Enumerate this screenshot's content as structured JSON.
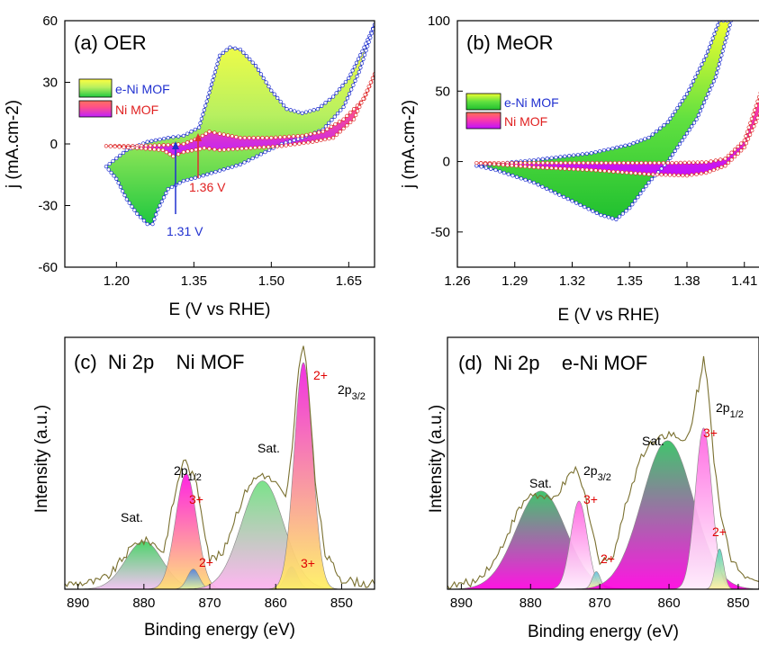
{
  "chart_data": [
    {
      "id": "a",
      "type": "area",
      "panel_title": "(a)  OER",
      "xlabel": "E (V vs RHE)",
      "ylabel": "j (mA.cm-2)",
      "xlim": [
        1.1,
        1.7
      ],
      "ylim": [
        -60,
        60
      ],
      "xticks": [
        "1.20",
        "1.35",
        "1.50",
        "1.65"
      ],
      "yticks": [
        "60",
        "30",
        "0",
        "-30",
        "-60"
      ],
      "legend": [
        "e-Ni MOF",
        "Ni MOF"
      ],
      "annotations": [
        "1.31 V",
        "1.36 V"
      ],
      "series": [
        {
          "name": "e-Ni MOF",
          "color": "#2030d0",
          "forward": [
            [
              1.18,
              -11
            ],
            [
              1.22,
              -3
            ],
            [
              1.26,
              1
            ],
            [
              1.3,
              3
            ],
            [
              1.33,
              4
            ],
            [
              1.36,
              8
            ],
            [
              1.38,
              25
            ],
            [
              1.4,
              43
            ],
            [
              1.42,
              47
            ],
            [
              1.44,
              46
            ],
            [
              1.47,
              38
            ],
            [
              1.5,
              26
            ],
            [
              1.53,
              17
            ],
            [
              1.56,
              15
            ],
            [
              1.59,
              17
            ],
            [
              1.62,
              23
            ],
            [
              1.65,
              32
            ],
            [
              1.68,
              47
            ],
            [
              1.7,
              58
            ]
          ],
          "reverse": [
            [
              1.7,
              58
            ],
            [
              1.67,
              35
            ],
            [
              1.64,
              18
            ],
            [
              1.6,
              7
            ],
            [
              1.56,
              3
            ],
            [
              1.52,
              0
            ],
            [
              1.48,
              -5
            ],
            [
              1.44,
              -10
            ],
            [
              1.4,
              -13
            ],
            [
              1.36,
              -16
            ],
            [
              1.33,
              -18
            ],
            [
              1.3,
              -22
            ],
            [
              1.28,
              -32
            ],
            [
              1.27,
              -39
            ],
            [
              1.26,
              -39
            ],
            [
              1.24,
              -34
            ],
            [
              1.22,
              -27
            ],
            [
              1.2,
              -17
            ],
            [
              1.18,
              -11
            ]
          ]
        },
        {
          "name": "Ni MOF",
          "color": "#e03030",
          "forward": [
            [
              1.18,
              -1
            ],
            [
              1.24,
              -1
            ],
            [
              1.3,
              -0.5
            ],
            [
              1.33,
              0
            ],
            [
              1.36,
              3
            ],
            [
              1.38,
              6
            ],
            [
              1.4,
              5
            ],
            [
              1.44,
              3
            ],
            [
              1.5,
              3
            ],
            [
              1.56,
              4
            ],
            [
              1.6,
              6
            ],
            [
              1.64,
              12
            ],
            [
              1.68,
              22
            ],
            [
              1.7,
              34
            ]
          ],
          "reverse": [
            [
              1.7,
              34
            ],
            [
              1.66,
              12
            ],
            [
              1.62,
              3
            ],
            [
              1.58,
              1
            ],
            [
              1.52,
              -1
            ],
            [
              1.46,
              -2
            ],
            [
              1.4,
              -3
            ],
            [
              1.37,
              -2
            ],
            [
              1.33,
              -4
            ],
            [
              1.31,
              -6
            ],
            [
              1.29,
              -3
            ],
            [
              1.24,
              -2
            ],
            [
              1.18,
              -1
            ]
          ]
        }
      ]
    },
    {
      "id": "b",
      "type": "area",
      "panel_title": "(b)  MeOR",
      "xlabel": "E (V vs RHE)",
      "ylabel": "j (mA.cm-2)",
      "xlim": [
        1.26,
        1.42
      ],
      "ylim": [
        -75,
        100
      ],
      "xticks": [
        "1.26",
        "1.29",
        "1.32",
        "1.35",
        "1.38",
        "1.41"
      ],
      "yticks": [
        "100",
        "50",
        "0",
        "-50"
      ],
      "legend": [
        "e-Ni MOF",
        "Ni MOF"
      ],
      "series": [
        {
          "name": "e-Ni MOF",
          "color": "#2030d0",
          "forward": [
            [
              1.27,
              -3
            ],
            [
              1.3,
              1
            ],
            [
              1.33,
              6
            ],
            [
              1.35,
              12
            ],
            [
              1.36,
              17
            ],
            [
              1.37,
              28
            ],
            [
              1.38,
              48
            ],
            [
              1.39,
              75
            ],
            [
              1.397,
              100
            ]
          ],
          "reverse": [
            [
              1.403,
              100
            ],
            [
              1.395,
              60
            ],
            [
              1.385,
              30
            ],
            [
              1.375,
              10
            ],
            [
              1.37,
              0
            ],
            [
              1.36,
              -15
            ],
            [
              1.35,
              -33
            ],
            [
              1.343,
              -41
            ],
            [
              1.335,
              -38
            ],
            [
              1.32,
              -28
            ],
            [
              1.3,
              -15
            ],
            [
              1.28,
              -6
            ],
            [
              1.27,
              -3
            ]
          ]
        },
        {
          "name": "Ni MOF",
          "color": "#e03030",
          "forward": [
            [
              1.27,
              -1
            ],
            [
              1.3,
              -1
            ],
            [
              1.34,
              -1
            ],
            [
              1.37,
              -1
            ],
            [
              1.39,
              -0.5
            ],
            [
              1.4,
              2
            ],
            [
              1.41,
              15
            ],
            [
              1.42,
              55
            ],
            [
              1.425,
              80
            ]
          ],
          "reverse": [
            [
              1.425,
              80
            ],
            [
              1.42,
              40
            ],
            [
              1.41,
              10
            ],
            [
              1.4,
              -3
            ],
            [
              1.39,
              -8
            ],
            [
              1.38,
              -10
            ],
            [
              1.36,
              -9
            ],
            [
              1.33,
              -6
            ],
            [
              1.3,
              -4
            ],
            [
              1.27,
              -1
            ]
          ]
        }
      ]
    },
    {
      "id": "c",
      "type": "area",
      "panel_title": "(c)  Ni 2p    Ni MOF",
      "xlabel": "Binding energy (eV)",
      "ylabel": "Intensity (a.u.)",
      "xlim": [
        892,
        845
      ],
      "ylim": [
        0,
        1
      ],
      "xticks": [
        "890",
        "880",
        "870",
        "860",
        "850"
      ],
      "peaks": [
        {
          "center": 880,
          "height": 0.19,
          "width": 2.8,
          "colors": [
            "#40d060",
            "#f0c0f0"
          ]
        },
        {
          "center": 873.6,
          "height": 0.46,
          "width": 1.6,
          "colors": [
            "#ff10e0",
            "#ffe070"
          ]
        },
        {
          "center": 872.5,
          "height": 0.08,
          "width": 0.9,
          "colors": [
            "#5080e0",
            "#e0f0a0"
          ]
        },
        {
          "center": 862,
          "height": 0.43,
          "width": 3.2,
          "colors": [
            "#70e080",
            "#ffb0f0"
          ]
        },
        {
          "center": 857.6,
          "height": 0.09,
          "width": 0.9,
          "colors": [
            "#6070e0",
            "#e0a0f0"
          ]
        },
        {
          "center": 855.8,
          "height": 0.9,
          "width": 1.4,
          "colors": [
            "#f020e0",
            "#fff060"
          ]
        }
      ],
      "raw": [
        [
          892,
          0.02
        ],
        [
          887,
          0.03
        ],
        [
          885,
          0.06
        ],
        [
          883,
          0.13
        ],
        [
          881,
          0.19
        ],
        [
          879,
          0.19
        ],
        [
          877,
          0.15
        ],
        [
          875.5,
          0.35
        ],
        [
          874,
          0.52
        ],
        [
          872,
          0.42
        ],
        [
          870,
          0.12
        ],
        [
          868,
          0.14
        ],
        [
          866,
          0.3
        ],
        [
          864,
          0.42
        ],
        [
          862,
          0.46
        ],
        [
          860,
          0.42
        ],
        [
          858.5,
          0.36
        ],
        [
          857.5,
          0.55
        ],
        [
          856.5,
          0.88
        ],
        [
          855.8,
          0.98
        ],
        [
          855,
          0.8
        ],
        [
          854,
          0.42
        ],
        [
          852.5,
          0.14
        ],
        [
          850,
          0.04
        ],
        [
          846,
          0.02
        ],
        [
          845,
          0.02
        ]
      ],
      "labels": {
        "sat1": "Sat.",
        "p12": "2p1/2",
        "sat2": "Sat.",
        "p32": "2p3/2",
        "c3a": "3+",
        "c2a": "2+",
        "c3b": "3+",
        "c2b": "2+"
      }
    },
    {
      "id": "d",
      "type": "area",
      "panel_title": "(d)  Ni 2p    e-Ni MOF",
      "xlabel": "Binding energy (eV)",
      "ylabel": "Intensity (a.u.)",
      "xlim": [
        892,
        847
      ],
      "ylim": [
        0,
        1
      ],
      "xticks": [
        "890",
        "880",
        "870",
        "860",
        "850"
      ],
      "peaks": [
        {
          "center": 878.5,
          "height": 0.39,
          "width": 3.6,
          "colors": [
            "#30c060",
            "#ff00e0"
          ]
        },
        {
          "center": 873,
          "height": 0.35,
          "width": 1.2,
          "colors": [
            "#ff60e0",
            "#ffffff"
          ]
        },
        {
          "center": 870.5,
          "height": 0.07,
          "width": 0.6,
          "colors": [
            "#60c0e0",
            "#fff0a0"
          ]
        },
        {
          "center": 860.2,
          "height": 0.59,
          "width": 3.7,
          "colors": [
            "#30c060",
            "#ff00e0"
          ]
        },
        {
          "center": 855,
          "height": 0.64,
          "width": 1.2,
          "colors": [
            "#ff60e0",
            "#ffffff"
          ]
        },
        {
          "center": 852.7,
          "height": 0.16,
          "width": 0.6,
          "colors": [
            "#50d0c0",
            "#fff0a0"
          ]
        }
      ],
      "raw": [
        [
          892,
          0.01
        ],
        [
          888,
          0.03
        ],
        [
          885,
          0.12
        ],
        [
          882,
          0.3
        ],
        [
          880,
          0.38
        ],
        [
          877,
          0.35
        ],
        [
          875,
          0.42
        ],
        [
          873.5,
          0.48
        ],
        [
          872,
          0.36
        ],
        [
          870,
          0.1
        ],
        [
          868,
          0.14
        ],
        [
          866,
          0.36
        ],
        [
          864,
          0.53
        ],
        [
          862,
          0.6
        ],
        [
          860,
          0.62
        ],
        [
          858,
          0.58
        ],
        [
          857,
          0.62
        ],
        [
          856,
          0.78
        ],
        [
          855.5,
          0.82
        ],
        [
          855,
          0.92
        ],
        [
          854.5,
          0.85
        ],
        [
          853.5,
          0.52
        ],
        [
          852.5,
          0.28
        ],
        [
          851,
          0.12
        ],
        [
          849,
          0.06
        ],
        [
          847,
          0.03
        ]
      ],
      "labels": {
        "sat1": "Sat.",
        "p32": "2p3/2",
        "sat2": "Sat.",
        "p12": "2p1/2",
        "c3a": "3+",
        "c2a": "2+",
        "c3b": "3+",
        "c2b": "2+"
      }
    }
  ]
}
